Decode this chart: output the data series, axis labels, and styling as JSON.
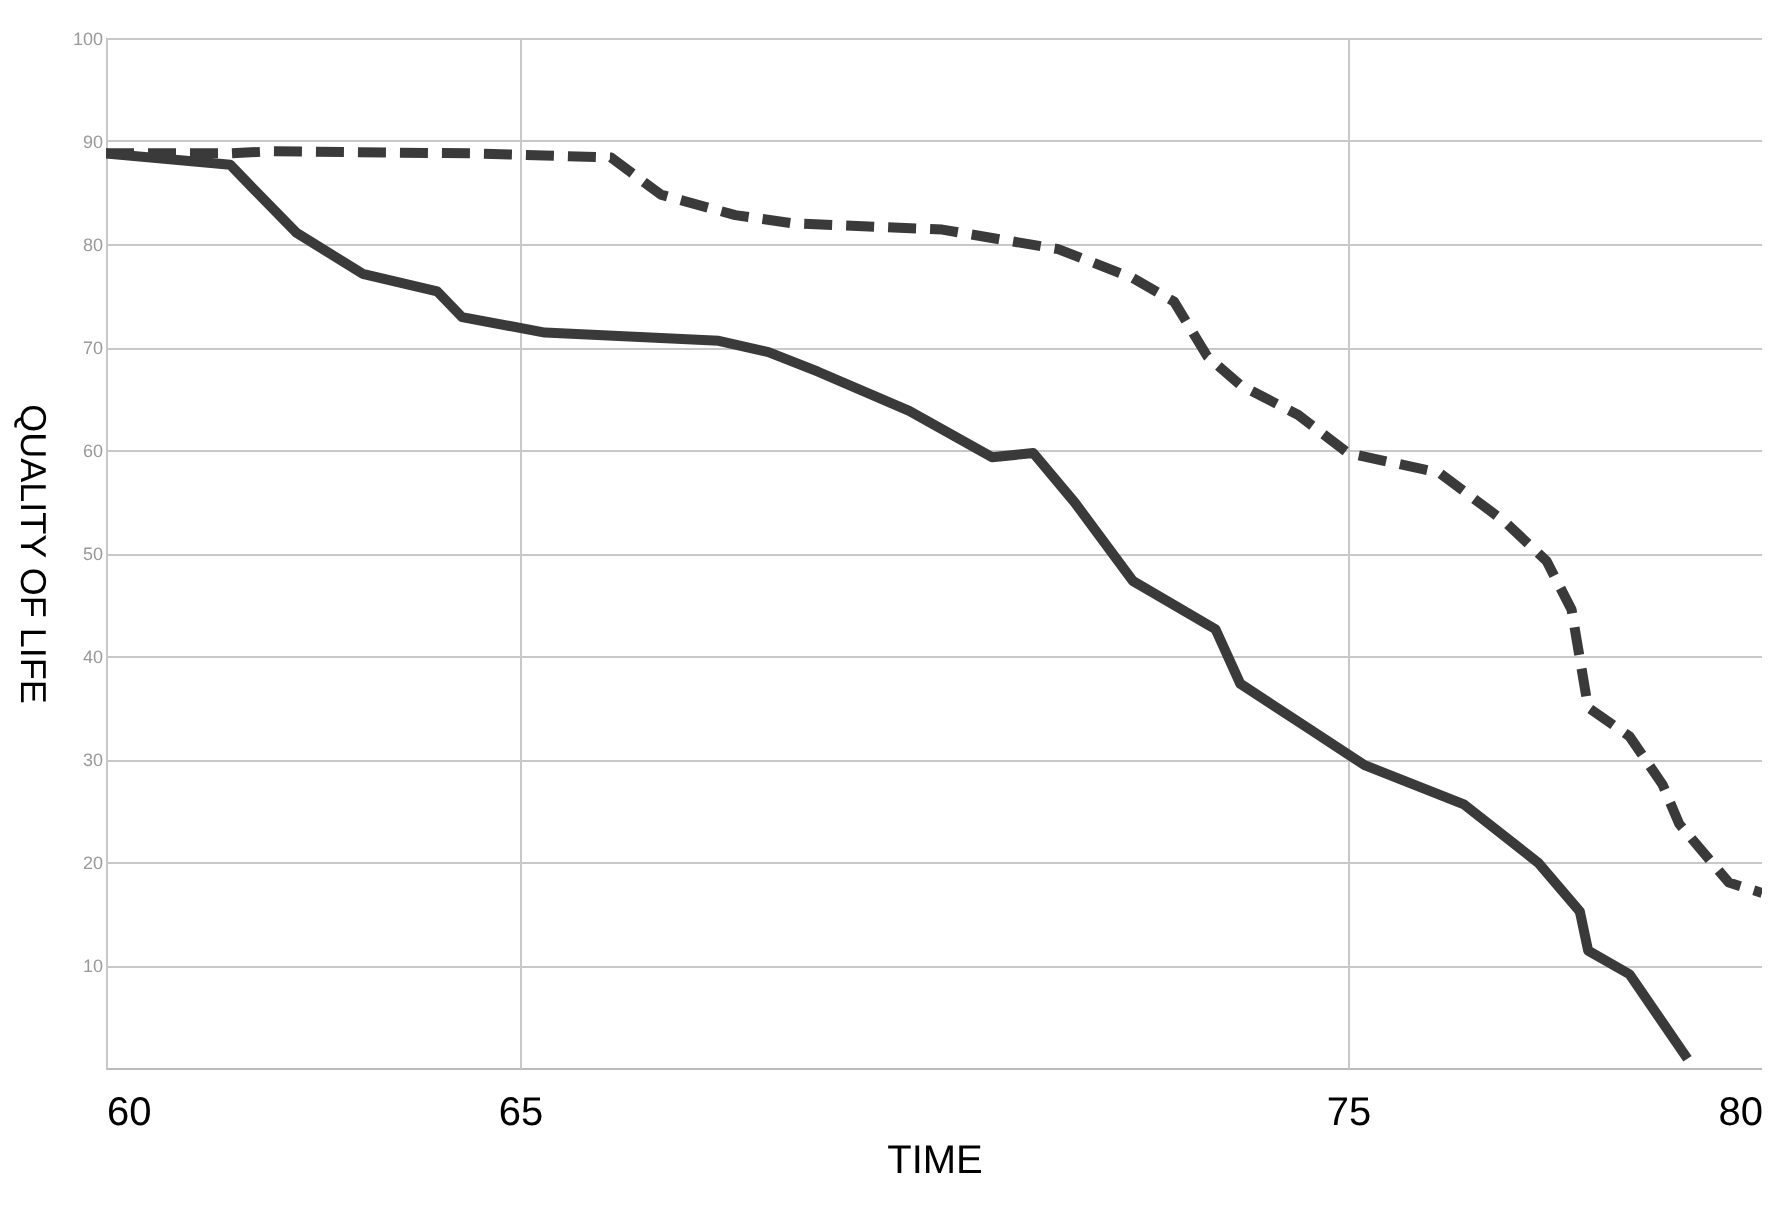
{
  "chart_data": {
    "type": "line",
    "xlabel": "TIME",
    "ylabel": "QUALITY OF LIFE",
    "xlim": [
      60,
      80
    ],
    "xticks": [
      60,
      65,
      75,
      80
    ],
    "ylim": [
      0,
      100
    ],
    "yticks": [
      10,
      20,
      30,
      40,
      50,
      60,
      70,
      80,
      90,
      100
    ],
    "grid": true,
    "series": [
      {
        "color": "#3a3a3a",
        "line_style": "solid",
        "x": [
          60,
          61.5,
          61.8,
          62.3,
          63.1,
          64.0,
          64.3,
          65.3,
          67.4,
          68.0,
          68.6,
          69.7,
          70.7,
          71.2,
          71.7,
          72.4,
          73.4,
          73.7,
          74.5,
          75.2,
          76.4,
          77.3,
          77.8,
          77.9,
          78.4,
          79.1
        ],
        "values": [
          88.8,
          87.7,
          85.2,
          81.1,
          77.1,
          75.4,
          72.9,
          71.4,
          70.6,
          69.5,
          67.6,
          63.8,
          59.3,
          59.7,
          54.9,
          47.3,
          42.6,
          37.3,
          33.1,
          29.4,
          25.6,
          19.9,
          15.2,
          11.4,
          9.1,
          0.9
        ]
      },
      {
        "color": "#3a3a3a",
        "line_style": "dashed",
        "x": [
          60,
          61.5,
          62.0,
          64.4,
          66.1,
          66.7,
          67.6,
          68.3,
          70.1,
          71.5,
          72.4,
          72.9,
          73.3,
          73.7,
          74.4,
          75.0,
          76.1,
          76.9,
          77.4,
          77.7,
          77.9,
          78.4,
          78.8,
          79.0,
          79.6,
          80
        ],
        "values": [
          88.8,
          88.8,
          89.0,
          88.8,
          88.4,
          84.8,
          82.8,
          82.0,
          81.4,
          79.5,
          76.7,
          74.4,
          69.1,
          66.3,
          63.4,
          59.7,
          57.8,
          53.0,
          49.2,
          44.5,
          35.0,
          32.2,
          27.5,
          23.7,
          18.0,
          17.0
        ]
      }
    ]
  }
}
